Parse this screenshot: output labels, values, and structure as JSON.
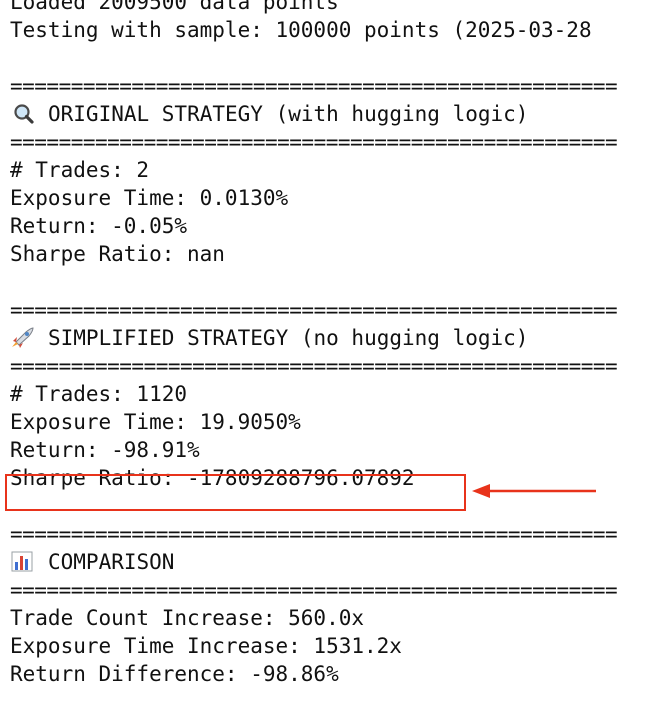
{
  "lines": {
    "loaded_partial": "Loaded   ",
    "loaded": "Loaded 2009500 data points",
    "testing": "Testing with sample: 100000 points (2025-03-28",
    "separator": "==================================================",
    "original_header": "ORIGINAL STRATEGY (with hugging logic)",
    "original_trades": "# Trades: 2",
    "original_exposure": "Exposure Time: 0.0130%",
    "original_return": "Return: -0.05%",
    "original_sharpe": "Sharpe Ratio: nan",
    "simplified_header": "SIMPLIFIED STRATEGY (no hugging logic)",
    "simplified_trades": "# Trades: 1120",
    "simplified_exposure": "Exposure Time: 19.9050%",
    "simplified_return": "Return: -98.91%",
    "simplified_sharpe": "Sharpe Ratio: -17809288796.07892",
    "comparison_header": "COMPARISON",
    "trade_count_increase": "Trade Count Increase: 560.0x",
    "exposure_increase": "Exposure Time Increase: 1531.2x",
    "return_difference": "Return Difference: -98.86%"
  },
  "icons": {
    "original": "magnifying-glass-icon",
    "simplified": "rocket-icon",
    "comparison": "bar-chart-icon"
  },
  "colors": {
    "highlight": "#e8331b",
    "text": "#111111"
  }
}
